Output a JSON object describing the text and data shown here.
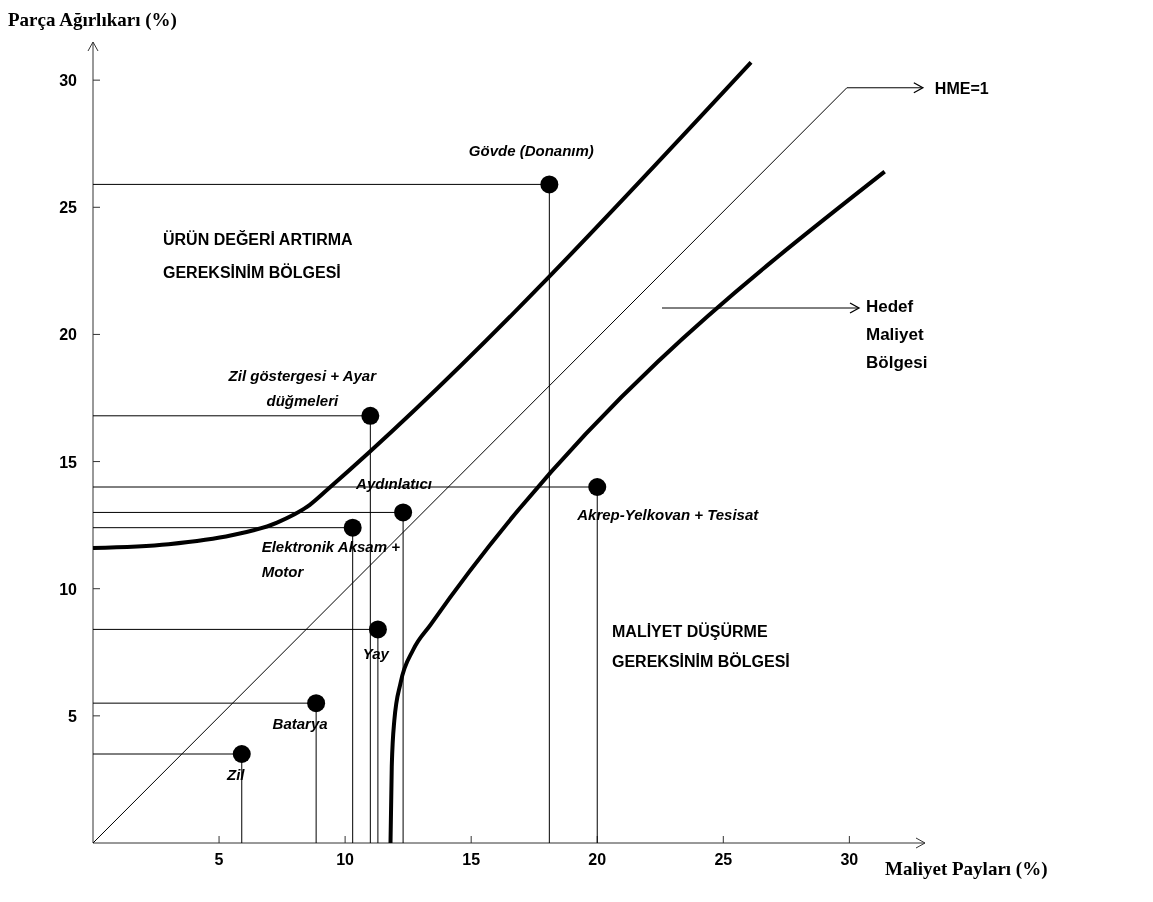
{
  "chart_data": {
    "type": "scatter",
    "xlabel": "Maliyet Payları (%)",
    "ylabel": "Parça Ağırlıkarı (%)",
    "xlim": [
      0,
      33
    ],
    "ylim": [
      0,
      31.5
    ],
    "xticks": [
      5,
      10,
      15,
      20,
      25,
      30
    ],
    "yticks": [
      5,
      10,
      15,
      20,
      25,
      30
    ],
    "grid": false,
    "legend": "top right",
    "marker": "circle",
    "series": [
      {
        "color": "#000000",
        "x": [
          5.9,
          8.85,
          11.3,
          10.3,
          12.3,
          11.0,
          18.1,
          20.0
        ],
        "values": [
          3.5,
          5.5,
          8.4,
          12.4,
          13.0,
          16.8,
          25.9,
          14.0
        ],
        "errors": [
          [
            0,
            3.5
          ],
          [
            0,
            5.5
          ],
          [
            0,
            8.4
          ],
          [
            0,
            12.4
          ],
          [
            0,
            13.0
          ],
          [
            0,
            16.8
          ],
          [
            0,
            25.9
          ],
          [
            0,
            14.0
          ]
        ],
        "xerrors": [
          [
            0,
            5.9
          ],
          [
            0,
            8.85
          ],
          [
            0,
            11.3
          ],
          [
            0,
            10.3
          ],
          [
            0,
            12.3
          ],
          [
            0,
            11.0
          ],
          [
            0,
            18.1
          ],
          [
            0,
            20.0
          ]
        ],
        "value_labels": [
          "Zil",
          "Batarya",
          "Yay",
          "Elektronik Aksam + Motor",
          "Aydınlatıcı",
          "Zil göstergesi + Ayar düğmeleri",
          "Gövde (Donanım)",
          "Akrep-Yelkovan + Tesisat"
        ]
      },
      {
        "type": "line",
        "marker": "none",
        "name": "HME=1",
        "color": "#000000",
        "x": [
          0,
          29.9
        ],
        "values": [
          0,
          29.7
        ]
      },
      {
        "type": "line",
        "marker": "none",
        "color": "#000000",
        "x": [
          0,
          3,
          5.5,
          7.3,
          8.6,
          9.3,
          26.1
        ],
        "values": [
          11.6,
          11.75,
          12.1,
          12.6,
          13.3,
          13.9,
          30.7
        ]
      },
      {
        "type": "line",
        "marker": "none",
        "color": "#000000",
        "x": [
          11.8,
          11.85,
          11.95,
          12.2,
          12.7,
          13.4,
          31.4
        ],
        "values": [
          0,
          3,
          4.8,
          6.3,
          7.6,
          8.6,
          26.4
        ]
      }
    ],
    "annotations": [
      "ÜRÜN DEĞERİ ARTIRMA GEREKSİNİM BÖLGESİ",
      "MALİYET DÜŞÜRME GEREKSİNİM BÖLGESİ",
      "Hedef Maliyet Bölgesi"
    ]
  }
}
